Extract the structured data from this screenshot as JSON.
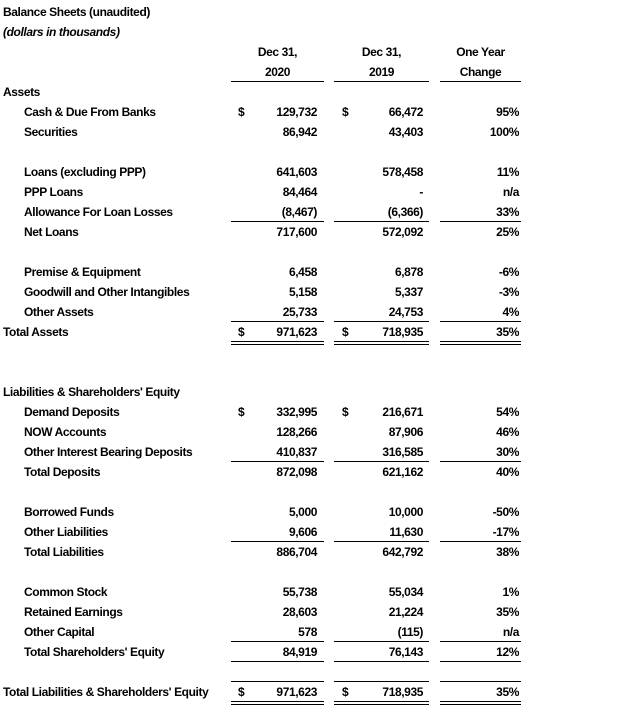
{
  "title": "Balance Sheets (unaudited)",
  "subtitle": "(dollars in thousands)",
  "columns": {
    "c1": [
      "Dec 31,",
      "2020"
    ],
    "c2": [
      "Dec 31,",
      "2019"
    ],
    "c3": [
      "One Year",
      "Change"
    ]
  },
  "currency_symbol": "$",
  "rows": [
    {
      "kind": "heading",
      "label": "Assets"
    },
    {
      "kind": "item",
      "label": "Cash & Due From Banks",
      "dollar": true,
      "v2020": "129,732",
      "v2019": "66,472",
      "change": "95%"
    },
    {
      "kind": "item",
      "label": "Securities",
      "v2020": "86,942",
      "v2019": "43,403",
      "change": "100%"
    },
    {
      "kind": "blank"
    },
    {
      "kind": "item",
      "label": "Loans (excluding PPP)",
      "v2020": "641,603",
      "v2019": "578,458",
      "change": "11%"
    },
    {
      "kind": "item",
      "label": "PPP Loans",
      "v2020": "84,464",
      "v2019": "-",
      "change": "n/a"
    },
    {
      "kind": "item",
      "label": "Allowance For Loan Losses",
      "v2020": "(8,467)",
      "v2019": "(6,366)",
      "change": "33%",
      "rule": "single"
    },
    {
      "kind": "item",
      "label": "Net Loans",
      "v2020": "717,600",
      "v2019": "572,092",
      "change": "25%"
    },
    {
      "kind": "blank"
    },
    {
      "kind": "item",
      "label": "Premise & Equipment",
      "v2020": "6,458",
      "v2019": "6,878",
      "change": "-6%"
    },
    {
      "kind": "item",
      "label": "Goodwill and Other Intangibles",
      "v2020": "5,158",
      "v2019": "5,337",
      "change": "-3%"
    },
    {
      "kind": "item",
      "label": "Other Assets",
      "v2020": "25,733",
      "v2019": "24,753",
      "change": "4%",
      "rule": "single"
    },
    {
      "kind": "heading",
      "label": "Total Assets",
      "dollar": true,
      "v2020": "971,623",
      "v2019": "718,935",
      "change": "35%",
      "rule": "double"
    },
    {
      "kind": "blank"
    },
    {
      "kind": "blank"
    },
    {
      "kind": "heading",
      "label": "Liabilities & Shareholders' Equity"
    },
    {
      "kind": "item",
      "label": "Demand Deposits",
      "dollar": true,
      "v2020": "332,995",
      "v2019": "216,671",
      "change": "54%"
    },
    {
      "kind": "item",
      "label": "NOW Accounts",
      "v2020": "128,266",
      "v2019": "87,906",
      "change": "46%"
    },
    {
      "kind": "item",
      "label": "Other Interest Bearing Deposits",
      "v2020": "410,837",
      "v2019": "316,585",
      "change": "30%",
      "rule": "single"
    },
    {
      "kind": "item",
      "label": "Total Deposits",
      "v2020": "872,098",
      "v2019": "621,162",
      "change": "40%"
    },
    {
      "kind": "blank"
    },
    {
      "kind": "item",
      "label": "Borrowed Funds",
      "v2020": "5,000",
      "v2019": "10,000",
      "change": "-50%"
    },
    {
      "kind": "item",
      "label": "Other Liabilities",
      "v2020": "9,606",
      "v2019": "11,630",
      "change": "-17%",
      "rule": "single"
    },
    {
      "kind": "item",
      "label": "Total Liabilities",
      "v2020": "886,704",
      "v2019": "642,792",
      "change": "38%"
    },
    {
      "kind": "blank"
    },
    {
      "kind": "item",
      "label": "Common Stock",
      "v2020": "55,738",
      "v2019": "55,034",
      "change": "1%"
    },
    {
      "kind": "item",
      "label": "Retained Earnings",
      "v2020": "28,603",
      "v2019": "21,224",
      "change": "35%"
    },
    {
      "kind": "item",
      "label": "Other Capital",
      "v2020": "578",
      "v2019": "(115)",
      "change": "n/a",
      "rule": "single"
    },
    {
      "kind": "item",
      "label": "Total Shareholders' Equity",
      "v2020": "84,919",
      "v2019": "76,143",
      "change": "12%",
      "rule": "single"
    },
    {
      "kind": "blank",
      "rule": "single"
    },
    {
      "kind": "heading",
      "label": "Total Liabilities & Shareholders' Equity",
      "dollar": true,
      "v2020": "971,623",
      "v2019": "718,935",
      "change": "35%",
      "rule": "double"
    }
  ]
}
